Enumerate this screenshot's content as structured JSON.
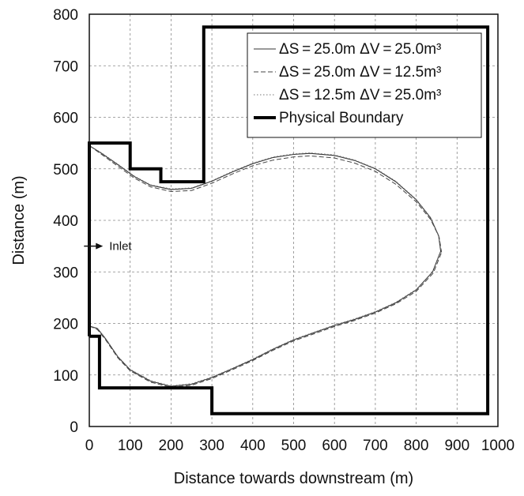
{
  "chart_data": {
    "type": "line",
    "title": "",
    "xlabel": "Distance towards downstream (m)",
    "ylabel": "Distance (m)",
    "xlim": [
      0,
      1000
    ],
    "ylim": [
      0,
      800
    ],
    "xticks": [
      0,
      100,
      200,
      300,
      400,
      500,
      600,
      700,
      800,
      900,
      1000
    ],
    "yticks": [
      0,
      100,
      200,
      300,
      400,
      500,
      600,
      700,
      800
    ],
    "grid": true,
    "legend_position": "top-right",
    "legend": [
      {
        "text": "ΔS = 25.0m ΔV = 25.0m³",
        "style": "solid"
      },
      {
        "text": "ΔS = 25.0m ΔV = 12.5m³",
        "style": "dashed"
      },
      {
        "text": "ΔS = 12.5m ΔV = 25.0m³",
        "style": "dotted"
      },
      {
        "text": "Physical Boundary",
        "style": "thick"
      }
    ],
    "annotation": {
      "text": "Inlet",
      "x": 45,
      "y": 350
    },
    "boundary": {
      "name": "Physical Boundary",
      "points": [
        [
          0,
          175
        ],
        [
          0,
          550
        ],
        [
          100,
          550
        ],
        [
          100,
          500
        ],
        [
          175,
          500
        ],
        [
          175,
          475
        ],
        [
          280,
          475
        ],
        [
          280,
          775
        ],
        [
          975,
          775
        ],
        [
          975,
          25
        ],
        [
          300,
          25
        ],
        [
          300,
          75
        ],
        [
          25,
          75
        ],
        [
          25,
          175
        ],
        [
          0,
          175
        ]
      ]
    },
    "series": [
      {
        "style": "solid",
        "upper": [
          [
            0,
            545
          ],
          [
            30,
            530
          ],
          [
            70,
            508
          ],
          [
            110,
            485
          ],
          [
            150,
            468
          ],
          [
            200,
            460
          ],
          [
            250,
            462
          ],
          [
            300,
            476
          ],
          [
            350,
            494
          ],
          [
            400,
            510
          ],
          [
            450,
            522
          ],
          [
            500,
            528
          ],
          [
            540,
            530
          ],
          [
            600,
            526
          ],
          [
            650,
            516
          ],
          [
            700,
            500
          ],
          [
            750,
            475
          ],
          [
            800,
            440
          ],
          [
            835,
            405
          ],
          [
            855,
            370
          ],
          [
            860,
            340
          ]
        ],
        "lower": [
          [
            0,
            195
          ],
          [
            20,
            190
          ],
          [
            40,
            170
          ],
          [
            70,
            135
          ],
          [
            100,
            110
          ],
          [
            150,
            88
          ],
          [
            200,
            78
          ],
          [
            250,
            82
          ],
          [
            300,
            95
          ],
          [
            350,
            112
          ],
          [
            400,
            130
          ],
          [
            450,
            150
          ],
          [
            500,
            168
          ],
          [
            550,
            182
          ],
          [
            600,
            196
          ],
          [
            650,
            208
          ],
          [
            700,
            222
          ],
          [
            750,
            240
          ],
          [
            800,
            265
          ],
          [
            840,
            300
          ],
          [
            860,
            340
          ]
        ]
      },
      {
        "style": "dashed",
        "upper": [
          [
            0,
            545
          ],
          [
            30,
            528
          ],
          [
            70,
            505
          ],
          [
            110,
            482
          ],
          [
            150,
            465
          ],
          [
            200,
            456
          ],
          [
            250,
            458
          ],
          [
            300,
            472
          ],
          [
            350,
            490
          ],
          [
            400,
            506
          ],
          [
            450,
            517
          ],
          [
            500,
            523
          ],
          [
            540,
            525
          ],
          [
            600,
            521
          ],
          [
            650,
            511
          ],
          [
            700,
            495
          ],
          [
            750,
            470
          ],
          [
            800,
            436
          ],
          [
            835,
            402
          ],
          [
            856,
            368
          ],
          [
            862,
            338
          ]
        ],
        "lower": [
          [
            0,
            195
          ],
          [
            20,
            188
          ],
          [
            40,
            168
          ],
          [
            70,
            133
          ],
          [
            100,
            108
          ],
          [
            150,
            86
          ],
          [
            200,
            76
          ],
          [
            250,
            80
          ],
          [
            300,
            93
          ],
          [
            350,
            110
          ],
          [
            400,
            128
          ],
          [
            450,
            148
          ],
          [
            500,
            166
          ],
          [
            550,
            180
          ],
          [
            600,
            194
          ],
          [
            650,
            206
          ],
          [
            700,
            220
          ],
          [
            750,
            238
          ],
          [
            800,
            262
          ],
          [
            842,
            298
          ],
          [
            862,
            338
          ]
        ]
      },
      {
        "style": "dotted",
        "upper": [
          [
            0,
            545
          ],
          [
            30,
            531
          ],
          [
            70,
            509
          ],
          [
            110,
            486
          ],
          [
            150,
            469
          ],
          [
            200,
            461
          ],
          [
            250,
            463
          ],
          [
            300,
            477
          ],
          [
            350,
            495
          ],
          [
            400,
            511
          ],
          [
            450,
            523
          ],
          [
            500,
            529
          ],
          [
            540,
            531
          ],
          [
            600,
            527
          ],
          [
            650,
            517
          ],
          [
            700,
            501
          ],
          [
            750,
            476
          ],
          [
            800,
            441
          ],
          [
            835,
            406
          ],
          [
            855,
            371
          ],
          [
            861,
            341
          ]
        ],
        "lower": [
          [
            0,
            195
          ],
          [
            20,
            191
          ],
          [
            40,
            171
          ],
          [
            70,
            136
          ],
          [
            100,
            111
          ],
          [
            150,
            89
          ],
          [
            200,
            79
          ],
          [
            250,
            83
          ],
          [
            300,
            96
          ],
          [
            350,
            113
          ],
          [
            400,
            131
          ],
          [
            450,
            151
          ],
          [
            500,
            169
          ],
          [
            550,
            183
          ],
          [
            600,
            197
          ],
          [
            650,
            209
          ],
          [
            700,
            223
          ],
          [
            750,
            241
          ],
          [
            800,
            266
          ],
          [
            841,
            301
          ],
          [
            861,
            341
          ]
        ]
      }
    ]
  }
}
